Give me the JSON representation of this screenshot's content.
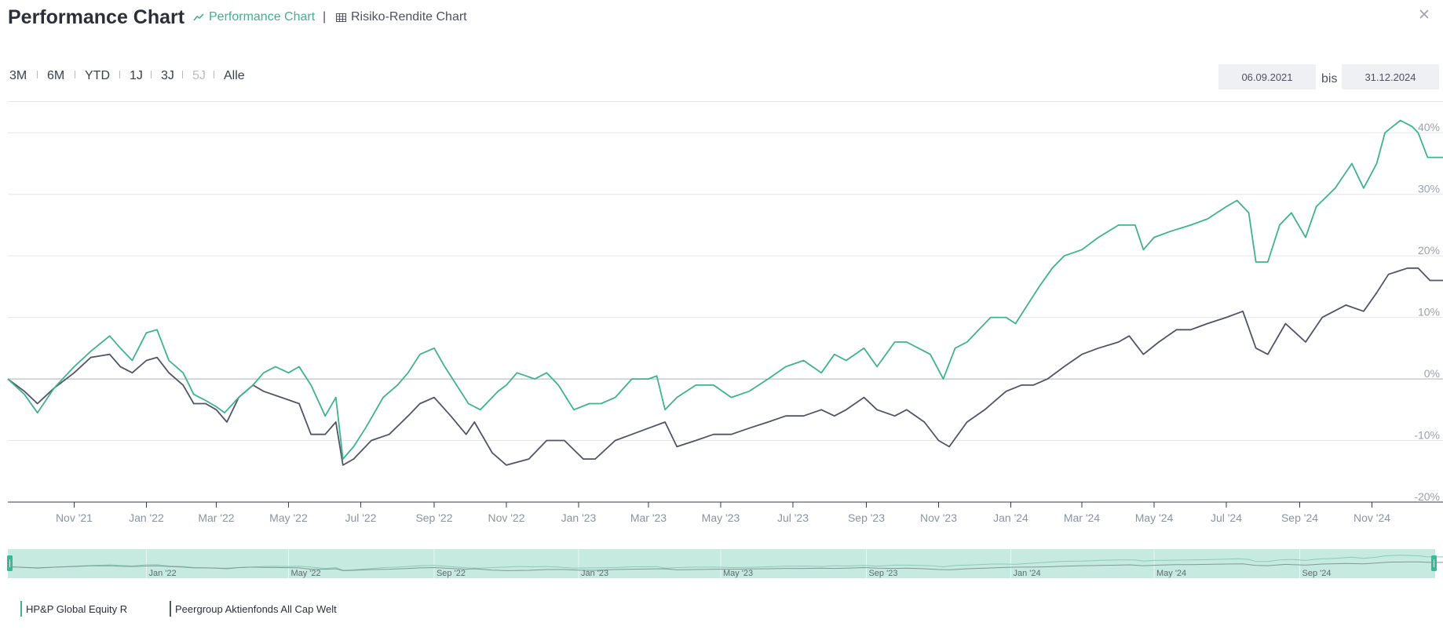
{
  "header": {
    "title": "Performance Chart",
    "tabs": [
      {
        "label": "Performance Chart",
        "icon": "line-chart-icon",
        "active": true
      },
      {
        "label": "Risiko-Rendite Chart",
        "icon": "table-grid-icon",
        "active": false
      }
    ],
    "separator": "|",
    "close_icon": "close-icon"
  },
  "range_buttons": [
    {
      "label": "3M",
      "enabled": true
    },
    {
      "label": "6M",
      "enabled": true
    },
    {
      "label": "YTD",
      "enabled": true
    },
    {
      "label": "1J",
      "enabled": true
    },
    {
      "label": "3J",
      "enabled": true
    },
    {
      "label": "5J",
      "enabled": false
    },
    {
      "label": "Alle",
      "enabled": true
    }
  ],
  "date_range": {
    "from": "06.09.2021",
    "separator": "bis",
    "to": "31.12.2024"
  },
  "colors": {
    "fund": "#3fb28f",
    "peer": "#4f5566",
    "navigator_fill": "#c6eae0",
    "grid": "#e6e6e6",
    "zero_line": "#b5b8bf"
  },
  "legend": [
    {
      "label": "HP&P Global Equity R",
      "color": "#3fb28f"
    },
    {
      "label": "Peergroup Aktienfonds All Cap Welt",
      "color": "#4f5566"
    }
  ],
  "navigator": {
    "tick_labels": [
      "Jan '22",
      "May '22",
      "Sep '22",
      "Jan '23",
      "May '23",
      "Sep '23",
      "Jan '24",
      "May '24",
      "Sep '24"
    ]
  },
  "chart_data": {
    "type": "line",
    "x_start": "2021-09-06",
    "x_end": "2024-12-31",
    "x_tick_labels": [
      "Nov '21",
      "Jan '22",
      "Mar '22",
      "May '22",
      "Jul '22",
      "Sep '22",
      "Nov '22",
      "Jan '23",
      "Mar '23",
      "May '23",
      "Jul '23",
      "Sep '23",
      "Nov '23",
      "Jan '24",
      "Mar '24",
      "May '24",
      "Jul '24",
      "Sep '24",
      "Nov '24"
    ],
    "y_ticks": [
      "-20%",
      "-10%",
      "0%",
      "10%",
      "20%",
      "30%",
      "40%"
    ],
    "ylim": [
      -20,
      45
    ],
    "y_unit": "%",
    "grid": true,
    "legend_position": "bottom-left",
    "series": [
      {
        "name": "HP&P Global Equity R",
        "color": "#3fb28f",
        "points": [
          [
            "2021-09-06",
            0
          ],
          [
            "2021-09-20",
            -2.5
          ],
          [
            "2021-10-01",
            -5.5
          ],
          [
            "2021-10-15",
            -1.5
          ],
          [
            "2021-11-01",
            2
          ],
          [
            "2021-11-15",
            4.5
          ],
          [
            "2021-12-01",
            7
          ],
          [
            "2021-12-10",
            5
          ],
          [
            "2021-12-20",
            3
          ],
          [
            "2022-01-01",
            7.5
          ],
          [
            "2022-01-10",
            8
          ],
          [
            "2022-01-20",
            3
          ],
          [
            "2022-02-01",
            1
          ],
          [
            "2022-02-10",
            -2.5
          ],
          [
            "2022-02-20",
            -3.5
          ],
          [
            "2022-03-01",
            -4.5
          ],
          [
            "2022-03-08",
            -5.5
          ],
          [
            "2022-03-20",
            -3
          ],
          [
            "2022-04-01",
            -1
          ],
          [
            "2022-04-10",
            1
          ],
          [
            "2022-04-20",
            2
          ],
          [
            "2022-05-01",
            1
          ],
          [
            "2022-05-10",
            2
          ],
          [
            "2022-05-20",
            -1
          ],
          [
            "2022-06-01",
            -6
          ],
          [
            "2022-06-10",
            -3
          ],
          [
            "2022-06-16",
            -13
          ],
          [
            "2022-06-25",
            -11
          ],
          [
            "2022-07-05",
            -8
          ],
          [
            "2022-07-20",
            -3
          ],
          [
            "2022-08-01",
            -1
          ],
          [
            "2022-08-10",
            1
          ],
          [
            "2022-08-20",
            4
          ],
          [
            "2022-09-01",
            5
          ],
          [
            "2022-09-10",
            2
          ],
          [
            "2022-09-20",
            -1
          ],
          [
            "2022-09-30",
            -4
          ],
          [
            "2022-10-10",
            -5
          ],
          [
            "2022-10-25",
            -2
          ],
          [
            "2022-11-01",
            -1
          ],
          [
            "2022-11-10",
            1
          ],
          [
            "2022-11-25",
            0
          ],
          [
            "2022-12-05",
            1
          ],
          [
            "2022-12-15",
            -1
          ],
          [
            "2022-12-28",
            -5
          ],
          [
            "2023-01-10",
            -4
          ],
          [
            "2023-01-20",
            -4
          ],
          [
            "2023-02-01",
            -3
          ],
          [
            "2023-02-15",
            0
          ],
          [
            "2023-03-01",
            0
          ],
          [
            "2023-03-08",
            0.5
          ],
          [
            "2023-03-15",
            -5
          ],
          [
            "2023-03-25",
            -3
          ],
          [
            "2023-04-10",
            -1
          ],
          [
            "2023-04-25",
            -1
          ],
          [
            "2023-05-10",
            -3
          ],
          [
            "2023-05-25",
            -2
          ],
          [
            "2023-06-10",
            0
          ],
          [
            "2023-06-25",
            2
          ],
          [
            "2023-07-10",
            3
          ],
          [
            "2023-07-25",
            1
          ],
          [
            "2023-08-05",
            4
          ],
          [
            "2023-08-15",
            3
          ],
          [
            "2023-08-30",
            5
          ],
          [
            "2023-09-10",
            2
          ],
          [
            "2023-09-25",
            6
          ],
          [
            "2023-10-05",
            6
          ],
          [
            "2023-10-15",
            5
          ],
          [
            "2023-10-25",
            4
          ],
          [
            "2023-11-05",
            0
          ],
          [
            "2023-11-15",
            5
          ],
          [
            "2023-11-25",
            6
          ],
          [
            "2023-12-05",
            8
          ],
          [
            "2023-12-15",
            10
          ],
          [
            "2023-12-28",
            10
          ],
          [
            "2024-01-05",
            9
          ],
          [
            "2024-01-15",
            12
          ],
          [
            "2024-01-25",
            15
          ],
          [
            "2024-02-05",
            18
          ],
          [
            "2024-02-15",
            20
          ],
          [
            "2024-03-01",
            21
          ],
          [
            "2024-03-15",
            23
          ],
          [
            "2024-04-01",
            25
          ],
          [
            "2024-04-15",
            25
          ],
          [
            "2024-04-22",
            21
          ],
          [
            "2024-05-01",
            23
          ],
          [
            "2024-05-15",
            24
          ],
          [
            "2024-06-01",
            25
          ],
          [
            "2024-06-15",
            26
          ],
          [
            "2024-07-01",
            28
          ],
          [
            "2024-07-10",
            29
          ],
          [
            "2024-07-20",
            27
          ],
          [
            "2024-07-26",
            19
          ],
          [
            "2024-08-05",
            19
          ],
          [
            "2024-08-15",
            25
          ],
          [
            "2024-08-25",
            27
          ],
          [
            "2024-09-06",
            23
          ],
          [
            "2024-09-15",
            28
          ],
          [
            "2024-10-01",
            31
          ],
          [
            "2024-10-15",
            35
          ],
          [
            "2024-10-25",
            31
          ],
          [
            "2024-11-05",
            35
          ],
          [
            "2024-11-12",
            40
          ],
          [
            "2024-11-25",
            42
          ],
          [
            "2024-12-05",
            41
          ],
          [
            "2024-12-10",
            40
          ],
          [
            "2024-12-18",
            36
          ],
          [
            "2024-12-31",
            36
          ]
        ]
      },
      {
        "name": "Peergroup Aktienfonds All Cap Welt",
        "color": "#4f5566",
        "points": [
          [
            "2021-09-06",
            0
          ],
          [
            "2021-09-20",
            -2
          ],
          [
            "2021-10-01",
            -4
          ],
          [
            "2021-10-15",
            -1.5
          ],
          [
            "2021-11-01",
            1
          ],
          [
            "2021-11-15",
            3.5
          ],
          [
            "2021-12-01",
            4
          ],
          [
            "2021-12-10",
            2
          ],
          [
            "2021-12-20",
            1
          ],
          [
            "2022-01-01",
            3
          ],
          [
            "2022-01-10",
            3.5
          ],
          [
            "2022-01-20",
            1
          ],
          [
            "2022-02-01",
            -1
          ],
          [
            "2022-02-10",
            -4
          ],
          [
            "2022-02-20",
            -4
          ],
          [
            "2022-03-01",
            -5
          ],
          [
            "2022-03-10",
            -7
          ],
          [
            "2022-03-20",
            -3
          ],
          [
            "2022-04-01",
            -1
          ],
          [
            "2022-04-10",
            -2
          ],
          [
            "2022-04-25",
            -3
          ],
          [
            "2022-05-10",
            -4
          ],
          [
            "2022-05-20",
            -9
          ],
          [
            "2022-06-01",
            -9
          ],
          [
            "2022-06-10",
            -7
          ],
          [
            "2022-06-16",
            -14
          ],
          [
            "2022-06-25",
            -13
          ],
          [
            "2022-07-10",
            -10
          ],
          [
            "2022-07-25",
            -9
          ],
          [
            "2022-08-10",
            -6
          ],
          [
            "2022-08-20",
            -4
          ],
          [
            "2022-09-01",
            -3
          ],
          [
            "2022-09-15",
            -6
          ],
          [
            "2022-09-28",
            -9
          ],
          [
            "2022-10-05",
            -7
          ],
          [
            "2022-10-20",
            -12
          ],
          [
            "2022-11-01",
            -14
          ],
          [
            "2022-11-20",
            -13
          ],
          [
            "2022-12-05",
            -10
          ],
          [
            "2022-12-20",
            -10
          ],
          [
            "2023-01-05",
            -13
          ],
          [
            "2023-01-15",
            -13
          ],
          [
            "2023-02-01",
            -10
          ],
          [
            "2023-02-15",
            -9
          ],
          [
            "2023-03-01",
            -8
          ],
          [
            "2023-03-15",
            -7
          ],
          [
            "2023-03-25",
            -11
          ],
          [
            "2023-04-10",
            -10
          ],
          [
            "2023-04-25",
            -9
          ],
          [
            "2023-05-10",
            -9
          ],
          [
            "2023-05-25",
            -8
          ],
          [
            "2023-06-10",
            -7
          ],
          [
            "2023-06-25",
            -6
          ],
          [
            "2023-07-10",
            -6
          ],
          [
            "2023-07-25",
            -5
          ],
          [
            "2023-08-05",
            -6
          ],
          [
            "2023-08-15",
            -5
          ],
          [
            "2023-08-30",
            -3
          ],
          [
            "2023-09-10",
            -5
          ],
          [
            "2023-09-25",
            -6
          ],
          [
            "2023-10-05",
            -5
          ],
          [
            "2023-10-20",
            -7
          ],
          [
            "2023-11-01",
            -10
          ],
          [
            "2023-11-10",
            -11
          ],
          [
            "2023-11-25",
            -7
          ],
          [
            "2023-12-10",
            -5
          ],
          [
            "2023-12-28",
            -2
          ],
          [
            "2024-01-10",
            -1
          ],
          [
            "2024-01-20",
            -1
          ],
          [
            "2024-02-01",
            0
          ],
          [
            "2024-02-15",
            2
          ],
          [
            "2024-03-01",
            4
          ],
          [
            "2024-03-15",
            5
          ],
          [
            "2024-04-01",
            6
          ],
          [
            "2024-04-10",
            7
          ],
          [
            "2024-04-22",
            4
          ],
          [
            "2024-05-05",
            6
          ],
          [
            "2024-05-20",
            8
          ],
          [
            "2024-06-01",
            8
          ],
          [
            "2024-06-15",
            9
          ],
          [
            "2024-07-01",
            10
          ],
          [
            "2024-07-15",
            11
          ],
          [
            "2024-07-26",
            5
          ],
          [
            "2024-08-05",
            4
          ],
          [
            "2024-08-20",
            9
          ],
          [
            "2024-09-06",
            6
          ],
          [
            "2024-09-20",
            10
          ],
          [
            "2024-10-10",
            12
          ],
          [
            "2024-10-25",
            11
          ],
          [
            "2024-11-05",
            14
          ],
          [
            "2024-11-15",
            17
          ],
          [
            "2024-12-01",
            18
          ],
          [
            "2024-12-10",
            18
          ],
          [
            "2024-12-20",
            16
          ],
          [
            "2024-12-31",
            16
          ]
        ]
      }
    ]
  }
}
